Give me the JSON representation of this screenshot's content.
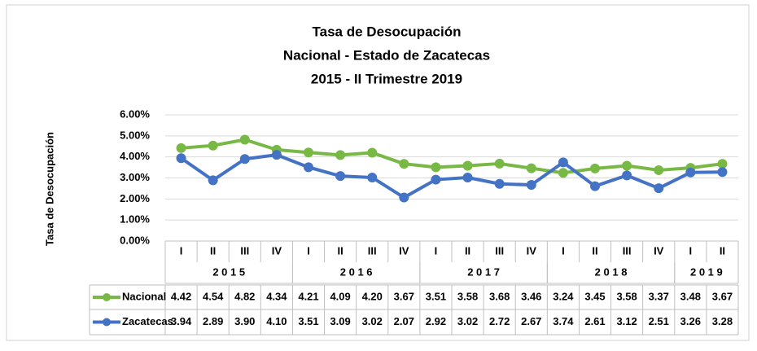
{
  "chart_data": {
    "type": "line",
    "title": [
      "Tasa de Desocupación",
      "Nacional - Estado de Zacatecas",
      "2015 - II Trimestre 2019"
    ],
    "ylabel": "Tasa de Desocupación",
    "categories": [
      "I",
      "II",
      "III",
      "IV",
      "I",
      "II",
      "III",
      "IV",
      "I",
      "II",
      "III",
      "IV",
      "I",
      "II",
      "III",
      "IV",
      "I",
      "II"
    ],
    "category_groups": [
      {
        "label": "2 0 1 5",
        "count": 4
      },
      {
        "label": "2 0 1 6",
        "count": 4
      },
      {
        "label": "2 0 1 7",
        "count": 4
      },
      {
        "label": "2 0 1 8",
        "count": 4
      },
      {
        "label": "2 0 1 9",
        "count": 2
      }
    ],
    "ylim": [
      0,
      6
    ],
    "yticks": [
      {
        "value": 0,
        "label": "0.00%"
      },
      {
        "value": 1,
        "label": "1.00%"
      },
      {
        "value": 2,
        "label": "2.00%"
      },
      {
        "value": 3,
        "label": "3.00%"
      },
      {
        "value": 4,
        "label": "4.00%"
      },
      {
        "value": 5,
        "label": "5.00%"
      },
      {
        "value": 6,
        "label": "6.00%"
      }
    ],
    "grid": true,
    "series": [
      {
        "name": "Nacional",
        "color": "#78b844",
        "values": [
          4.42,
          4.54,
          4.82,
          4.34,
          4.21,
          4.09,
          4.2,
          3.67,
          3.51,
          3.58,
          3.68,
          3.46,
          3.24,
          3.45,
          3.58,
          3.37,
          3.48,
          3.67
        ],
        "value_labels": [
          "4.42",
          "4.54",
          "4.82",
          "4.34",
          "4.21",
          "4.09",
          "4.20",
          "3.67",
          "3.51",
          "3.58",
          "3.68",
          "3.46",
          "3.24",
          "3.45",
          "3.58",
          "3.37",
          "3.48",
          "3.67"
        ]
      },
      {
        "name": "Zacatecas",
        "color": "#4472c4",
        "values": [
          3.94,
          2.89,
          3.9,
          4.1,
          3.51,
          3.09,
          3.02,
          2.07,
          2.92,
          3.02,
          2.72,
          2.67,
          3.74,
          2.61,
          3.12,
          2.51,
          3.26,
          3.28
        ],
        "value_labels": [
          "3.94",
          "2.89",
          "3.90",
          "4.10",
          "3.51",
          "3.09",
          "3.02",
          "2.07",
          "2.92",
          "3.02",
          "2.72",
          "2.67",
          "3.74",
          "2.61",
          "3.12",
          "2.51",
          "3.26",
          "3.28"
        ]
      }
    ]
  }
}
